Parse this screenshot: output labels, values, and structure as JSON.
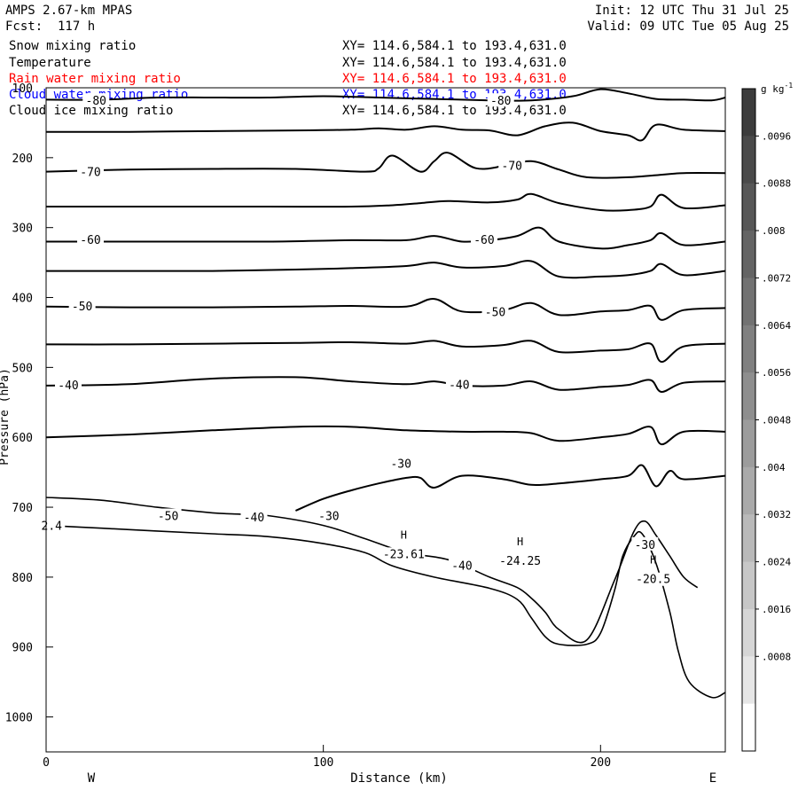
{
  "header": {
    "model": "AMPS 2.67-km MPAS",
    "forecast": "Fcst:  117 h",
    "init": "Init: 12 UTC Thu 31 Jul 25",
    "valid": "Valid: 09 UTC Tue 05 Aug 25"
  },
  "fields": [
    {
      "name": "Snow mixing ratio",
      "xy": "XY= 114.6,584.1 to 193.4,631.0",
      "color": "#000000"
    },
    {
      "name": "Temperature",
      "xy": "XY= 114.6,584.1 to 193.4,631.0",
      "color": "#000000"
    },
    {
      "name": "Rain water mixing ratio",
      "xy": "XY= 114.6,584.1 to 193.4,631.0",
      "color": "#ff0000"
    },
    {
      "name": "Cloud water mixing ratio",
      "xy": "XY= 114.6,584.1 to 193.4,631.0",
      "color": "#0000ff"
    },
    {
      "name": "Cloud ice mixing ratio",
      "xy": "XY= 114.6,584.1 to 193.4,631.0",
      "color": "#000000"
    }
  ],
  "chart_data": {
    "type": "line",
    "xlabel": "Distance (km)",
    "ylabel": "Pressure (hPa)",
    "xlim": [
      0,
      245
    ],
    "ylim": [
      1050,
      100
    ],
    "x_ticks": [
      0,
      100,
      200
    ],
    "y_ticks": [
      100,
      200,
      300,
      400,
      500,
      600,
      700,
      800,
      900,
      1000
    ],
    "direction_left": "W",
    "direction_right": "E",
    "colorbar": {
      "unit": "g kg",
      "unit_exp": "-1",
      "labels": [
        ".0096",
        ".0088",
        ".008",
        ".0072",
        ".0064",
        ".0056",
        ".0048",
        ".004",
        ".0032",
        ".0024",
        ".0016",
        ".0008"
      ],
      "shades": [
        "#3c3c3c",
        "#4a4a4a",
        "#575757",
        "#646464",
        "#727272",
        "#808080",
        "#8e8e8e",
        "#9c9c9c",
        "#aaaaaa",
        "#b9b9b9",
        "#c7c7c7",
        "#d6d6d6",
        "#e6e6e6",
        "#ffffff"
      ]
    },
    "contour_labels": [
      {
        "text": "-80",
        "x": 18,
        "p": 118
      },
      {
        "text": "-80",
        "x": 164,
        "p": 118
      },
      {
        "text": "-70",
        "x": 16,
        "p": 220
      },
      {
        "text": "-70",
        "x": 168,
        "p": 211
      },
      {
        "text": "-60",
        "x": 16,
        "p": 317
      },
      {
        "text": "-60",
        "x": 158,
        "p": 317
      },
      {
        "text": "-50",
        "x": 13,
        "p": 412
      },
      {
        "text": "-50",
        "x": 162,
        "p": 420
      },
      {
        "text": "-40",
        "x": 8,
        "p": 525
      },
      {
        "text": "-40",
        "x": 149,
        "p": 524
      },
      {
        "text": "-30",
        "x": 128,
        "p": 637
      },
      {
        "text": "-50",
        "x": 44,
        "p": 712
      },
      {
        "text": "-40",
        "x": 75,
        "p": 714
      },
      {
        "text": "-30",
        "x": 102,
        "p": 712
      },
      {
        "text": "-40",
        "x": 150,
        "p": 783
      },
      {
        "text": "-30",
        "x": 216,
        "p": 753
      },
      {
        "text": "2.4",
        "x": 2,
        "p": 726
      }
    ],
    "extrema": [
      {
        "mark": "H",
        "value": "-23.61",
        "x": 129,
        "p": 760
      },
      {
        "mark": "H",
        "value": "-24.25",
        "x": 171,
        "p": 770
      },
      {
        "mark": "H",
        "value": "-20.5",
        "x": 219,
        "p": 796
      }
    ],
    "isotherms": [
      {
        "label": "-80",
        "x": [
          0,
          20,
          40,
          60,
          80,
          100,
          120,
          140,
          160,
          175,
          190,
          200,
          210,
          220,
          230,
          240,
          245
        ],
        "p": [
          117,
          117,
          114,
          114,
          114,
          112,
          114,
          116,
          118,
          118,
          112,
          102,
          108,
          116,
          117,
          118,
          114
        ]
      },
      {
        "label": "",
        "x": [
          0,
          30,
          60,
          90,
          110,
          120,
          130,
          140,
          150,
          160,
          170,
          180,
          190,
          200,
          210,
          215,
          220,
          230,
          245
        ],
        "p": [
          163,
          163,
          162,
          161,
          160,
          158,
          160,
          155,
          160,
          161,
          168,
          155,
          150,
          162,
          168,
          175,
          153,
          160,
          162
        ]
      },
      {
        "label": "-70",
        "x": [
          0,
          30,
          60,
          90,
          115,
          120,
          125,
          135,
          140,
          145,
          155,
          165,
          175,
          185,
          195,
          210,
          220,
          230,
          245
        ],
        "p": [
          220,
          217,
          216,
          216,
          220,
          215,
          197,
          220,
          205,
          193,
          215,
          212,
          205,
          217,
          228,
          228,
          225,
          222,
          222
        ]
      },
      {
        "label": "",
        "x": [
          0,
          40,
          80,
          110,
          125,
          135,
          145,
          160,
          170,
          175,
          185,
          200,
          210,
          218,
          222,
          230,
          245
        ],
        "p": [
          270,
          270,
          270,
          270,
          268,
          265,
          262,
          264,
          260,
          252,
          265,
          275,
          275,
          270,
          253,
          272,
          268
        ]
      },
      {
        "label": "-60",
        "x": [
          0,
          40,
          80,
          110,
          130,
          140,
          150,
          160,
          170,
          178,
          185,
          200,
          210,
          218,
          222,
          230,
          245
        ],
        "p": [
          320,
          320,
          320,
          318,
          318,
          312,
          320,
          318,
          312,
          300,
          320,
          330,
          325,
          318,
          308,
          325,
          320
        ]
      },
      {
        "label": "",
        "x": [
          0,
          30,
          60,
          90,
          110,
          130,
          140,
          150,
          165,
          175,
          185,
          200,
          210,
          218,
          222,
          230,
          245
        ],
        "p": [
          362,
          362,
          362,
          360,
          358,
          355,
          350,
          357,
          355,
          348,
          370,
          370,
          368,
          362,
          352,
          368,
          362
        ]
      },
      {
        "label": "-50",
        "x": [
          0,
          30,
          60,
          90,
          110,
          130,
          140,
          150,
          165,
          175,
          185,
          200,
          210,
          218,
          222,
          230,
          245
        ],
        "p": [
          413,
          414,
          414,
          413,
          412,
          413,
          402,
          420,
          418,
          408,
          425,
          420,
          418,
          412,
          432,
          418,
          415
        ]
      },
      {
        "label": "",
        "x": [
          0,
          30,
          60,
          90,
          110,
          130,
          140,
          150,
          165,
          175,
          185,
          200,
          210,
          218,
          222,
          230,
          245
        ],
        "p": [
          467,
          467,
          466,
          465,
          464,
          466,
          462,
          470,
          468,
          462,
          478,
          476,
          474,
          466,
          492,
          470,
          466
        ]
      },
      {
        "label": "-40",
        "x": [
          0,
          30,
          60,
          90,
          110,
          130,
          140,
          150,
          165,
          175,
          185,
          200,
          210,
          218,
          222,
          230,
          245
        ],
        "p": [
          526,
          524,
          516,
          514,
          520,
          524,
          520,
          526,
          526,
          520,
          532,
          528,
          525,
          518,
          535,
          522,
          520
        ]
      },
      {
        "label": "",
        "x": [
          0,
          30,
          60,
          90,
          110,
          130,
          150,
          165,
          175,
          185,
          200,
          210,
          218,
          222,
          230,
          245
        ],
        "p": [
          600,
          596,
          590,
          585,
          585,
          590,
          592,
          592,
          594,
          605,
          600,
          595,
          585,
          610,
          592,
          592
        ]
      },
      {
        "label": "-30",
        "x": [
          90,
          100,
          110,
          120,
          130,
          135,
          140,
          150,
          165,
          175,
          185,
          200,
          210,
          215,
          220,
          225,
          230,
          245
        ],
        "p": [
          705,
          688,
          676,
          666,
          658,
          658,
          672,
          655,
          660,
          668,
          666,
          660,
          655,
          640,
          670,
          648,
          660,
          655
        ]
      }
    ],
    "surface_lines": [
      {
        "x": [
          0,
          20,
          40,
          60,
          80,
          100,
          115,
          125,
          140,
          160,
          170,
          175,
          180,
          185,
          195,
          200,
          205,
          208,
          212,
          215,
          220,
          225,
          228,
          232,
          240,
          245
        ],
        "p": [
          726,
          730,
          734,
          738,
          742,
          752,
          765,
          784,
          800,
          816,
          832,
          858,
          885,
          896,
          896,
          880,
          820,
          770,
          742,
          738,
          780,
          850,
          905,
          950,
          972,
          965
        ]
      },
      {
        "x": [
          0,
          20,
          40,
          60,
          70,
          80,
          100,
          115,
          130,
          145,
          160,
          170,
          175,
          180,
          185,
          195,
          205,
          212,
          216,
          220,
          225,
          230,
          235
        ],
        "p": [
          686,
          690,
          700,
          708,
          710,
          712,
          726,
          745,
          765,
          775,
          800,
          815,
          830,
          850,
          875,
          890,
          805,
          735,
          720,
          740,
          770,
          800,
          815
        ]
      }
    ],
    "plot_area": {
      "frame": [
        52,
        99,
        818,
        848
      ]
    }
  }
}
